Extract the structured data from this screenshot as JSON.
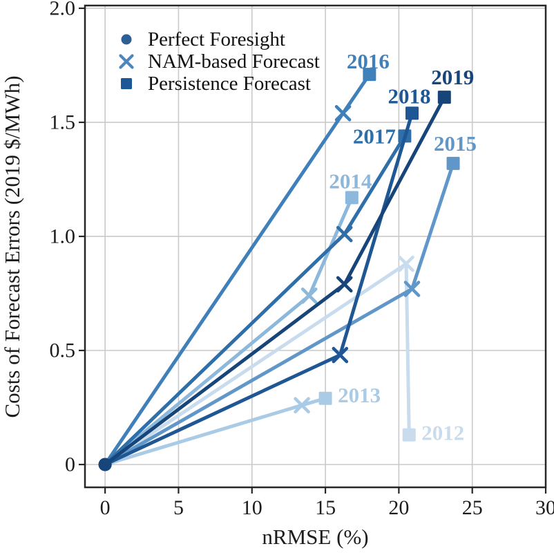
{
  "chart_data": {
    "type": "scatter",
    "title": "",
    "xlabel": "nRMSE (%)",
    "ylabel": "Costs of Forecast Errors (2019 $/MWh)",
    "x_ticks": [
      "0",
      "5",
      "10",
      "15",
      "20",
      "25",
      "30"
    ],
    "x_tick_values": [
      0,
      5,
      10,
      15,
      20,
      25,
      30
    ],
    "y_ticks": [
      "0",
      "0.5",
      "1.0",
      "1.5",
      "2.0"
    ],
    "y_tick_values": [
      0,
      0.5,
      1.0,
      1.5,
      2.0
    ],
    "xlim": [
      -1.37,
      30
    ],
    "ylim": [
      -0.1,
      2.012
    ],
    "grid": true,
    "grid_color": "#c9c9c9",
    "axis_color": "#262626",
    "legend": {
      "position": "upper-left",
      "items": [
        {
          "label": "Perfect Foresight",
          "marker": "circle",
          "color": "#2d5f94"
        },
        {
          "label": "NAM-based Forecast",
          "marker": "x",
          "color": "#4d85bd"
        },
        {
          "label": "Persistence Forecast",
          "marker": "square",
          "color": "#1e5795"
        }
      ]
    },
    "marker_legend_note": "each year line connects perfect_foresight -> nam_forecast (x) -> persistence_forecast (square)",
    "series": [
      {
        "year": "2012",
        "color": "#c8dcee",
        "perfect_foresight": [
          0,
          0
        ],
        "nam_forecast": [
          20.5,
          0.88
        ],
        "persistence_forecast": [
          20.7,
          0.13
        ],
        "label_offset": [
          49,
          -3
        ]
      },
      {
        "year": "2013",
        "color": "#a9cbe5",
        "perfect_foresight": [
          0,
          0
        ],
        "nam_forecast": [
          13.4,
          0.26
        ],
        "persistence_forecast": [
          15.0,
          0.29
        ],
        "label_offset": [
          49,
          -5
        ]
      },
      {
        "year": "2014",
        "color": "#8cb8dc",
        "perfect_foresight": [
          0,
          0
        ],
        "nam_forecast": [
          13.9,
          0.74
        ],
        "persistence_forecast": [
          16.8,
          1.17
        ],
        "label_offset": [
          -2,
          -24
        ]
      },
      {
        "year": "2015",
        "color": "#6097c8",
        "perfect_foresight": [
          0,
          0
        ],
        "nam_forecast": [
          20.9,
          0.77
        ],
        "persistence_forecast": [
          23.7,
          1.32
        ],
        "label_offset": [
          3,
          -29
        ]
      },
      {
        "year": "2016",
        "color": "#3f80ba",
        "perfect_foresight": [
          0,
          0
        ],
        "nam_forecast": [
          16.2,
          1.54
        ],
        "persistence_forecast": [
          18.0,
          1.71
        ],
        "label_offset": [
          -2,
          -19
        ]
      },
      {
        "year": "2017",
        "color": "#2e6ea9",
        "perfect_foresight": [
          0,
          0
        ],
        "nam_forecast": [
          16.3,
          1.01
        ],
        "persistence_forecast": [
          20.4,
          1.44
        ],
        "label_offset": [
          -44,
          0
        ]
      },
      {
        "year": "2018",
        "color": "#1f5795",
        "perfect_foresight": [
          0,
          0
        ],
        "nam_forecast": [
          16.0,
          0.48
        ],
        "persistence_forecast": [
          20.9,
          1.54
        ],
        "label_offset": [
          -4,
          -25
        ]
      },
      {
        "year": "2019",
        "color": "#17457a",
        "perfect_foresight": [
          0,
          0
        ],
        "nam_forecast": [
          16.3,
          0.79
        ],
        "persistence_forecast": [
          23.1,
          1.61
        ],
        "label_offset": [
          12,
          -29
        ]
      }
    ]
  }
}
